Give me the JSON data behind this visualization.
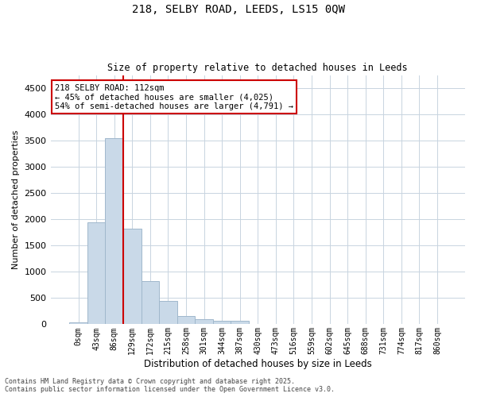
{
  "title": "218, SELBY ROAD, LEEDS, LS15 0QW",
  "subtitle": "Size of property relative to detached houses in Leeds",
  "xlabel": "Distribution of detached houses by size in Leeds",
  "ylabel": "Number of detached properties",
  "bar_values": [
    30,
    1950,
    3550,
    1820,
    830,
    450,
    160,
    100,
    70,
    70,
    0,
    0,
    0,
    0,
    0,
    0,
    0,
    0,
    0,
    0,
    0
  ],
  "bar_labels": [
    "0sqm",
    "43sqm",
    "86sqm",
    "129sqm",
    "172sqm",
    "215sqm",
    "258sqm",
    "301sqm",
    "344sqm",
    "387sqm",
    "430sqm",
    "473sqm",
    "516sqm",
    "559sqm",
    "602sqm",
    "645sqm",
    "688sqm",
    "731sqm",
    "774sqm",
    "817sqm",
    "860sqm"
  ],
  "bar_color": "#c9d9e8",
  "bar_edge_color": "#a0b8cc",
  "vline_color": "#cc0000",
  "vline_position": 2.5,
  "ylim": [
    0,
    4750
  ],
  "yticks": [
    0,
    500,
    1000,
    1500,
    2000,
    2500,
    3000,
    3500,
    4000,
    4500
  ],
  "annotation_text": "218 SELBY ROAD: 112sqm\n← 45% of detached houses are smaller (4,025)\n54% of semi-detached houses are larger (4,791) →",
  "annotation_box_color": "#cc0000",
  "footer_line1": "Contains HM Land Registry data © Crown copyright and database right 2025.",
  "footer_line2": "Contains public sector information licensed under the Open Government Licence v3.0.",
  "bg_color": "#ffffff",
  "grid_color": "#c8d4e0",
  "fig_width": 6.0,
  "fig_height": 5.0
}
